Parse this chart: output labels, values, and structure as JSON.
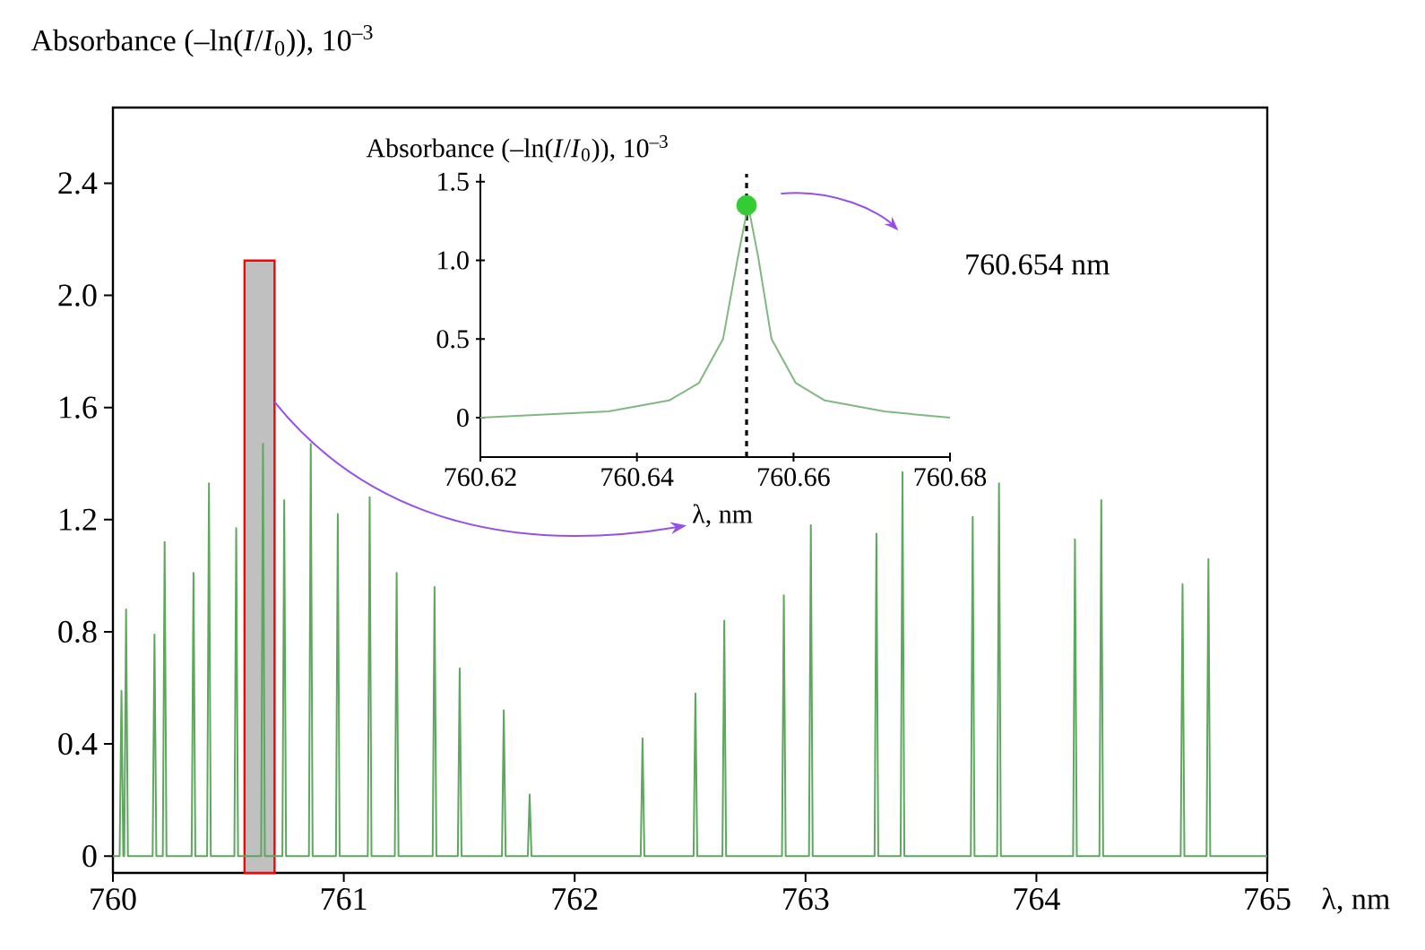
{
  "chart_data": [
    {
      "type": "line",
      "ylabel": "Absorbance (–ln(*I*/*I*$_{0}$)), 10$^{–3}$",
      "xlabel": "λ, nm",
      "xlim": [
        760,
        765
      ],
      "ylim": [
        -0.06,
        2.67
      ],
      "xticks": [
        760,
        761,
        762,
        763,
        764,
        765
      ],
      "yticks": [
        0,
        0.4,
        0.8,
        1.2,
        1.6,
        {
          "value": 2,
          "label": "2.0"
        },
        2.4
      ],
      "x": [
        760,
        760.029,
        760.037,
        760.045,
        760.049,
        760.057,
        760.065,
        760.172,
        760.18,
        760.188,
        760.216,
        760.224,
        760.232,
        760.341,
        760.349,
        760.357,
        760.408,
        760.416,
        760.424,
        760.526,
        760.534,
        760.542,
        760.642,
        760.65,
        760.658,
        760.734,
        760.742,
        760.75,
        760.849,
        760.857,
        760.865,
        760.966,
        760.974,
        760.982,
        761.104,
        761.112,
        761.12,
        761.221,
        761.229,
        761.237,
        761.385,
        761.393,
        761.401,
        761.494,
        761.502,
        761.51,
        761.685,
        761.693,
        761.701,
        761.797,
        761.805,
        761.813,
        762.286,
        762.294,
        762.302,
        762.515,
        762.523,
        762.531,
        762.64,
        762.648,
        762.656,
        762.898,
        762.906,
        762.914,
        763.015,
        763.023,
        763.031,
        763.299,
        763.307,
        763.315,
        763.412,
        763.42,
        763.428,
        763.716,
        763.724,
        763.732,
        763.83,
        763.838,
        763.846,
        764.159,
        764.167,
        764.175,
        764.273,
        764.281,
        764.289,
        764.625,
        764.633,
        764.641,
        764.737,
        764.745,
        764.753,
        765
      ],
      "values": [
        0,
        0,
        0.59,
        0,
        0,
        0.88,
        0,
        0,
        0.79,
        0,
        0,
        1.12,
        0,
        0,
        1.01,
        0,
        0,
        1.33,
        0,
        0,
        1.17,
        0,
        0,
        1.47,
        0,
        0,
        1.27,
        0,
        0,
        1.47,
        0,
        0,
        1.22,
        0,
        0,
        1.28,
        0,
        0,
        1.01,
        0,
        0,
        0.96,
        0,
        0,
        0.67,
        0,
        0,
        0.52,
        0,
        0,
        0.22,
        0,
        0,
        0.42,
        0,
        0,
        0.58,
        0,
        0,
        0.84,
        0,
        0,
        0.93,
        0,
        0,
        1.18,
        0,
        0,
        1.15,
        0,
        0,
        1.37,
        0,
        0,
        1.21,
        0,
        0,
        1.33,
        0,
        0,
        1.13,
        0,
        0,
        1.27,
        0,
        0,
        0.97,
        0,
        0,
        1.06,
        0,
        0
      ],
      "color": "#5ea85e",
      "bands": [
        {
          "axis": "x",
          "from": 760.57,
          "to": 760.7,
          "color": "#c0c0c0"
        }
      ]
    },
    {
      "type": "line",
      "ylabel": "Absorbance (–ln(*I*/*I*$_{0}$)), 10$^{–3}$",
      "xlabel": "λ, nm",
      "xlim": [
        760.62,
        760.68
      ],
      "ylim": [
        -0.25,
        1.55
      ],
      "xticks": [
        760.62,
        760.64,
        760.66,
        760.68
      ],
      "yticks": [
        0,
        0.5,
        {
          "value": 1,
          "label": "1.0"
        },
        1.5
      ],
      "series": [
        {
          "type": "line",
          "color": "#80b880",
          "x": [
            760.62,
            760.6364,
            760.6441,
            760.6479,
            760.651,
            760.6529,
            760.6542,
            760.6555,
            760.6572,
            760.6603,
            760.664,
            760.6716,
            760.68
          ],
          "values": [
            0,
            0.04,
            0.11,
            0.22,
            0.5,
            1.02,
            1.35,
            1.02,
            0.5,
            0.22,
            0.11,
            0.04,
            0
          ]
        },
        {
          "type": "scatter",
          "marker": "circle",
          "color": "#33cc33",
          "x": [
            760.654
          ],
          "values": [
            1.35
          ]
        }
      ],
      "ref_lines": [
        {
          "axis": "x",
          "value": 760.654,
          "color": "#000000",
          "line_style": "dashed"
        }
      ],
      "annotations": [
        "760.654 nm"
      ]
    }
  ]
}
